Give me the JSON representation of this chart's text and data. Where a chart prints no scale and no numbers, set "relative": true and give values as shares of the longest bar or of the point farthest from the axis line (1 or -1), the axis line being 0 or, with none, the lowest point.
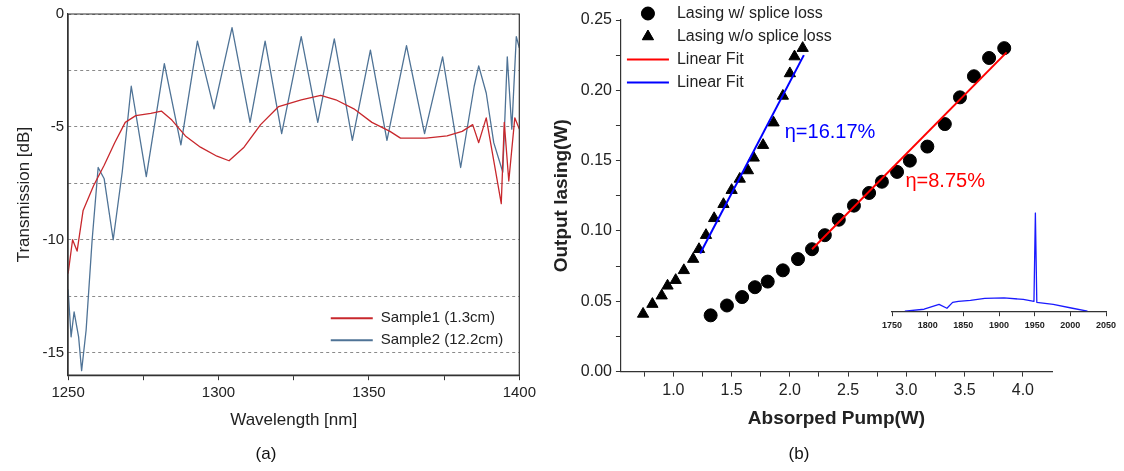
{
  "chart_data": [
    {
      "type": "line",
      "title": "(a)",
      "xlabel": "Wavelength [nm]",
      "ylabel": "Transmission [dB]",
      "xlim": [
        1250,
        1400
      ],
      "xticks": [
        1250,
        {
          "value": 1275,
          "label": null
        },
        1300,
        {
          "value": 1325,
          "label": null
        },
        1350,
        {
          "value": 1375,
          "label": null
        },
        1400
      ],
      "ylim": [
        -16,
        0
      ],
      "yticks": [
        0,
        {
          "value": -2.5,
          "label": null
        },
        -5,
        {
          "value": -7.5,
          "label": null
        },
        -10,
        {
          "value": -12.5,
          "label": null
        },
        -15
      ],
      "grid": "y",
      "legend": "bottom right",
      "marker": "none",
      "series": [
        {
          "name": "Sample1 (1.3cm)",
          "color": "#c8282d",
          "x": [
            1250,
            1251.5,
            1253,
            1255,
            1258.5,
            1262,
            1265.5,
            1269,
            1272.5,
            1277.5,
            1281,
            1284.5,
            1289,
            1294,
            1299.5,
            1303.5,
            1308.5,
            1314,
            1320,
            1327.5,
            1334,
            1339,
            1345,
            1351,
            1357,
            1360.5,
            1369,
            1376,
            1381,
            1384.5,
            1386.5,
            1389,
            1391.5,
            1394,
            1395,
            1396.5,
            1398.5,
            1400
          ],
          "values": [
            -11.5,
            -10,
            -10.5,
            -8.7,
            -7.6,
            -6.7,
            -5.7,
            -4.8,
            -4.5,
            -4.4,
            -4.3,
            -4.7,
            -5.4,
            -5.9,
            -6.3,
            -6.5,
            -5.9,
            -4.9,
            -4.1,
            -3.8,
            -3.6,
            -3.8,
            -4.2,
            -4.8,
            -5.2,
            -5.5,
            -5.5,
            -5.4,
            -5.2,
            -4.9,
            -5.7,
            -4.6,
            -6.5,
            -8.4,
            -4.8,
            -7.4,
            -4.6,
            -5.1
          ]
        },
        {
          "name": "Sample2 (12.2cm)",
          "color": "#4f7396",
          "x": [
            1250,
            1251,
            1252,
            1253.5,
            1254.5,
            1256,
            1258,
            1260,
            1262,
            1265,
            1268,
            1271,
            1276,
            1282,
            1287.5,
            1293,
            1298.5,
            1304.5,
            1310.5,
            1315.5,
            1321,
            1327.5,
            1333,
            1338.5,
            1344.5,
            1350.5,
            1356,
            1362.5,
            1368.5,
            1374.5,
            1380.5,
            1385,
            1386.5,
            1389,
            1391.5,
            1394.5,
            1396,
            1397.5,
            1399,
            1400
          ],
          "values": [
            -12.2,
            -14.3,
            -13.2,
            -14.3,
            -15.8,
            -14,
            -10,
            -6.8,
            -7.3,
            -10,
            -7,
            -3.2,
            -7.2,
            -2.2,
            -5.8,
            -1.2,
            -4.2,
            -0.6,
            -4.8,
            -1.2,
            -5.3,
            -1,
            -4.8,
            -1.1,
            -5.6,
            -1.6,
            -5.6,
            -1.4,
            -5.3,
            -1.9,
            -6.8,
            -3.2,
            -2.3,
            -3.5,
            -5.7,
            -7,
            -1.9,
            -5.1,
            -1,
            -1.5
          ]
        }
      ]
    },
    {
      "type": "scatter",
      "title": "(b)",
      "xlabel": "Absorped Pump(W)",
      "ylabel": "Output lasing(W)",
      "xlim": [
        0.55,
        4.25
      ],
      "xticks": [
        {
          "value": 0.75,
          "label": null
        },
        {
          "value": 1,
          "label": "1.0"
        },
        {
          "value": 1.25,
          "label": null
        },
        1.5,
        {
          "value": 1.75,
          "label": null
        },
        {
          "value": 2,
          "label": "2.0"
        },
        {
          "value": 2.25,
          "label": null
        },
        2.5,
        {
          "value": 2.75,
          "label": null
        },
        {
          "value": 3,
          "label": "3.0"
        },
        {
          "value": 3.25,
          "label": null
        },
        3.5,
        {
          "value": 3.75,
          "label": null
        },
        {
          "value": 4,
          "label": "4.0"
        }
      ],
      "ylim": [
        0,
        0.25
      ],
      "yticks": [
        {
          "value": 0,
          "label": "0.00"
        },
        {
          "value": 0.025,
          "label": null
        },
        0.05,
        {
          "value": 0.075,
          "label": null
        },
        {
          "value": 0.1,
          "label": "0.10"
        },
        {
          "value": 0.125,
          "label": null
        },
        0.15,
        {
          "value": 0.175,
          "label": null
        },
        {
          "value": 0.2,
          "label": "0.20"
        },
        {
          "value": 0.225,
          "label": null
        },
        0.25
      ],
      "legend": "top left",
      "annotations": [
        "η=8.75%",
        "η=16.17%"
      ],
      "series": [
        {
          "name": "Lasing w/ splice loss",
          "color": "#000000",
          "marker": "circle",
          "x": [
            1.32,
            1.46,
            1.59,
            1.7,
            1.81,
            1.94,
            2.07,
            2.19,
            2.3,
            2.42,
            2.55,
            2.68,
            2.79,
            2.92,
            3.03,
            3.18,
            3.33,
            3.46,
            3.58,
            3.71,
            3.84
          ],
          "values": [
            0.04,
            0.047,
            0.053,
            0.06,
            0.064,
            0.072,
            0.08,
            0.087,
            0.097,
            0.108,
            0.118,
            0.127,
            0.135,
            0.142,
            0.15,
            0.16,
            0.176,
            0.195,
            0.21,
            0.223,
            0.23
          ]
        },
        {
          "name": "Lasing w/o splice loss",
          "color": "#000000",
          "marker": "triangle",
          "x": [
            0.74,
            0.82,
            0.9,
            0.95,
            1.02,
            1.09,
            1.17,
            1.22,
            1.28,
            1.35,
            1.43,
            1.5,
            1.57,
            1.64,
            1.69,
            1.77,
            1.86,
            1.94,
            2.0,
            2.04,
            2.11
          ],
          "values": [
            0.041,
            0.048,
            0.054,
            0.061,
            0.065,
            0.072,
            0.08,
            0.087,
            0.097,
            0.109,
            0.119,
            0.129,
            0.137,
            0.143,
            0.152,
            0.161,
            0.177,
            0.196,
            0.212,
            0.224,
            0.23
          ]
        },
        {
          "name": "Linear Fit",
          "type": "line",
          "marker": "none",
          "color": "#ff0000",
          "x": [
            2.19,
            3.86
          ],
          "values": [
            0.087,
            0.227
          ]
        },
        {
          "name": "Linear Fit",
          "type": "line",
          "marker": "none",
          "color": "#0000ff",
          "x": [
            1.23,
            2.12
          ],
          "values": [
            0.084,
            0.225
          ]
        }
      ]
    },
    {
      "type": "line",
      "relative": true,
      "xlim": [
        1750,
        2050
      ],
      "xticks": [
        1750,
        1800,
        1850,
        1900,
        1950,
        2000,
        2050
      ],
      "tick_labels": "x",
      "marker": "none",
      "series": [
        {
          "color": "#1a1aff",
          "x": [
            1768,
            1795,
            1816,
            1827,
            1835,
            1843,
            1860,
            1880,
            1907,
            1934,
            1949,
            1951,
            1953,
            1976,
            2003,
            2024
          ],
          "values": [
            0,
            0.02,
            0.07,
            0.03,
            0.09,
            0.1,
            0.11,
            0.13,
            0.135,
            0.12,
            0.1,
            1,
            0.09,
            0.07,
            0.03,
            0
          ]
        }
      ]
    }
  ]
}
